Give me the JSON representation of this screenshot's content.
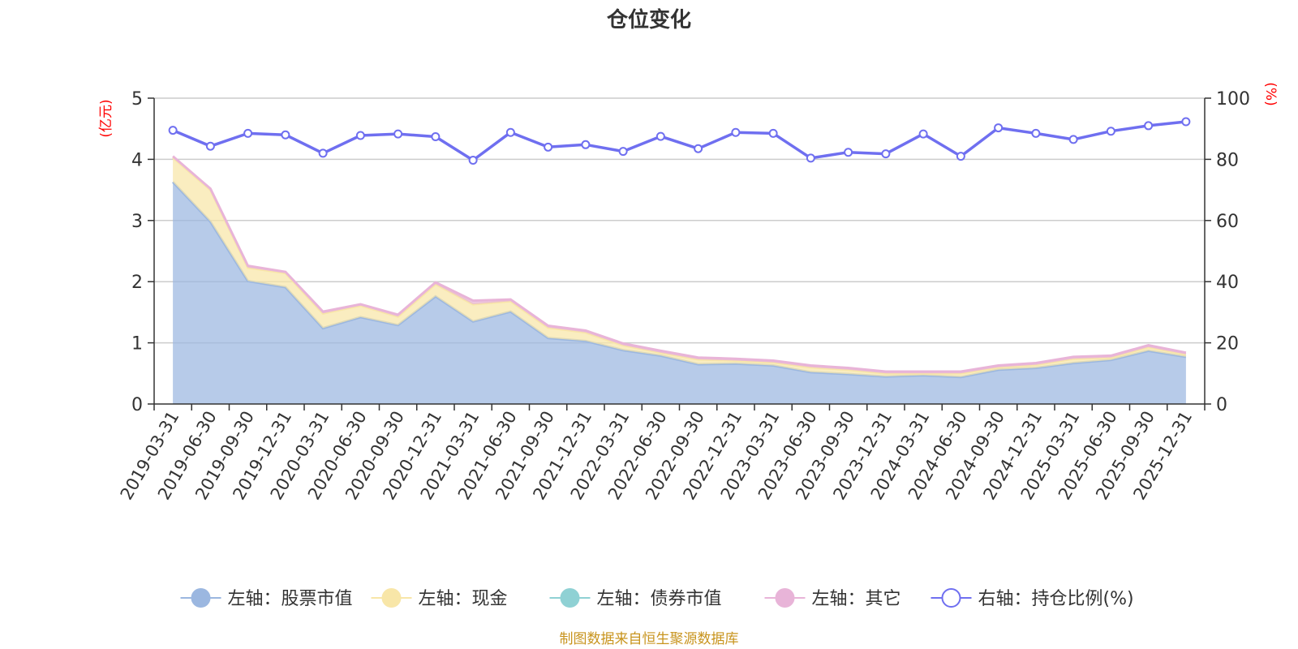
{
  "chart_data": {
    "type": "area",
    "title": "仓位变化",
    "left_unit": "(亿元)",
    "right_unit": "(%)",
    "left_axis": {
      "min": 0,
      "max": 5,
      "ticks": [
        "0",
        "1",
        "2",
        "3",
        "4",
        "5"
      ]
    },
    "right_axis": {
      "min": 0,
      "max": 100,
      "ticks": [
        "0",
        "20",
        "40",
        "60",
        "80",
        "100"
      ]
    },
    "grid": true,
    "x": [
      "2019-03-31",
      "2019-06-30",
      "2019-09-30",
      "2019-12-31",
      "2020-03-31",
      "2020-06-30",
      "2020-09-30",
      "2020-12-31",
      "2021-03-31",
      "2021-06-30",
      "2021-09-30",
      "2021-12-31",
      "2022-03-31",
      "2022-06-30",
      "2022-09-30",
      "2022-12-31",
      "2023-03-31",
      "2023-06-30",
      "2023-09-30",
      "2023-12-31",
      "2024-03-31",
      "2024-06-30",
      "2024-09-30",
      "2024-12-31",
      "2025-03-31",
      "2025-06-30",
      "2025-09-30",
      "2025-12-31"
    ],
    "series": [
      {
        "name": "左轴：股票市值",
        "axis": "left",
        "stack": true,
        "color": "#9bb7e0",
        "values": [
          3.63,
          2.98,
          2.01,
          1.91,
          1.24,
          1.42,
          1.29,
          1.76,
          1.35,
          1.51,
          1.08,
          1.03,
          0.88,
          0.79,
          0.65,
          0.66,
          0.63,
          0.52,
          0.49,
          0.45,
          0.47,
          0.44,
          0.56,
          0.59,
          0.67,
          0.72,
          0.87,
          0.77
        ]
      },
      {
        "name": "左轴：现金",
        "axis": "left",
        "stack": true,
        "color": "#f8e6a8",
        "values": [
          0.4,
          0.52,
          0.22,
          0.23,
          0.24,
          0.19,
          0.14,
          0.2,
          0.28,
          0.17,
          0.17,
          0.14,
          0.08,
          0.05,
          0.08,
          0.05,
          0.05,
          0.08,
          0.07,
          0.05,
          0.03,
          0.06,
          0.04,
          0.05,
          0.07,
          0.04,
          0.06,
          0.04
        ]
      },
      {
        "name": "左轴：债券市值",
        "axis": "left",
        "stack": true,
        "color": "#8fd1d4",
        "values": [
          0,
          0,
          0,
          0,
          0,
          0,
          0,
          0,
          0,
          0,
          0,
          0,
          0,
          0,
          0,
          0,
          0,
          0,
          0,
          0,
          0,
          0,
          0,
          0,
          0,
          0,
          0,
          0
        ]
      },
      {
        "name": "左轴：其它",
        "axis": "left",
        "stack": true,
        "color": "#e8b4d8",
        "values": [
          0.02,
          0.02,
          0.03,
          0.02,
          0.03,
          0.02,
          0.03,
          0.03,
          0.06,
          0.03,
          0.03,
          0.03,
          0.03,
          0.03,
          0.03,
          0.03,
          0.03,
          0.03,
          0.03,
          0.03,
          0.03,
          0.03,
          0.03,
          0.03,
          0.03,
          0.03,
          0.03,
          0.03
        ]
      },
      {
        "name": "右轴：持仓比例(%)",
        "axis": "right",
        "type": "line",
        "color": "#6f6ff0",
        "values": [
          89.5,
          84.3,
          88.5,
          88.0,
          82.0,
          87.8,
          88.3,
          87.4,
          79.7,
          88.8,
          84.0,
          84.8,
          82.6,
          87.5,
          83.5,
          88.8,
          88.5,
          80.4,
          82.3,
          81.8,
          88.3,
          81.0,
          90.3,
          88.5,
          86.5,
          89.2,
          91.0,
          92.3
        ]
      }
    ],
    "legend_position": "bottom"
  },
  "source_text": "制图数据来自恒生聚源数据库",
  "colors": {
    "grid": "#cccccc",
    "axis": "#333333",
    "unit_label": "#ff0000",
    "source": "#c8941e"
  }
}
